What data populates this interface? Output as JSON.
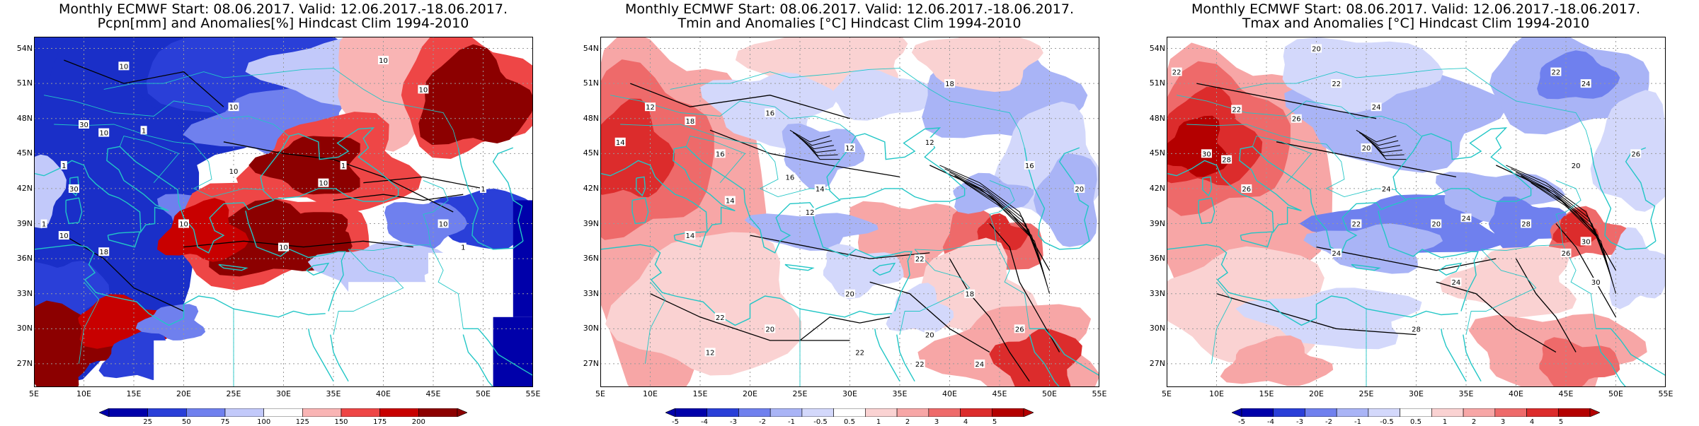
{
  "panels": [
    {
      "title_line1": "Monthly ECMWF Start: 08.06.2017. Valid: 12.06.2017.-18.06.2017.",
      "title_line2": "Pcpn[mm] and Anomalies[%] Hindcast Clim 1994-2010",
      "colorbar_labels": [
        "25",
        "50",
        "75",
        "100",
        "125",
        "150",
        "175",
        "200"
      ],
      "contour_labels": [
        "10",
        "10",
        "10",
        "10",
        "1",
        "1",
        "10",
        "30",
        "1",
        "30",
        "10",
        "10",
        "10",
        "18",
        "10",
        "1",
        "10",
        "1",
        "10",
        "1"
      ],
      "anomaly_palette": [
        "#0000aa",
        "#2a3fd8",
        "#6f80ee",
        "#c2c9fa",
        "#ffffff",
        "#f9b4b4",
        "#ee4646",
        "#c80000",
        "#8c0000"
      ]
    },
    {
      "title_line1": "Monthly ECMWF Start: 08.06.2017. Valid: 12.06.2017.-18.06.2017.",
      "title_line2": "Tmin and Anomalies [°C] Hindcast Clim 1994-2010",
      "colorbar_labels": [
        "-5",
        "-4",
        "-3",
        "-2",
        "-1",
        "-0.5",
        "0.5",
        "1",
        "2",
        "3",
        "4",
        "5"
      ],
      "contour_labels": [
        "12",
        "14",
        "16",
        "18",
        "12",
        "16",
        "14",
        "16",
        "14",
        "12",
        "12",
        "22",
        "22",
        "18",
        "20",
        "22",
        "20",
        "24",
        "26",
        "20",
        "18",
        "22",
        "12",
        "16",
        "14",
        "20"
      ],
      "anomaly_palette": [
        "#0000aa",
        "#2a3fd8",
        "#6f80ee",
        "#a9b4f6",
        "#d3d8fb",
        "#ffffff",
        "#fad2d2",
        "#f7a6a6",
        "#ee6a6a",
        "#dc2c2c",
        "#b40000"
      ]
    },
    {
      "title_line1": "Monthly ECMWF Start: 08.06.2017. Valid: 12.06.2017.-18.06.2017.",
      "title_line2": "Tmax and Anomalies [°C] Hindcast Clim 1994-2010",
      "colorbar_labels": [
        "-5",
        "-4",
        "-3",
        "-2",
        "-1",
        "-0.5",
        "0.5",
        "1",
        "2",
        "3",
        "4",
        "5"
      ],
      "contour_labels": [
        "22",
        "20",
        "22",
        "24",
        "26",
        "22",
        "30",
        "28",
        "26",
        "20",
        "24",
        "22",
        "20",
        "24",
        "28",
        "26",
        "30",
        "24",
        "24",
        "30",
        "28",
        "20",
        "22",
        "24",
        "26"
      ],
      "anomaly_palette": [
        "#0000aa",
        "#2a3fd8",
        "#6f80ee",
        "#a9b4f6",
        "#d3d8fb",
        "#ffffff",
        "#fad2d2",
        "#f7a6a6",
        "#ee6a6a",
        "#dc2c2c",
        "#b40000"
      ]
    }
  ],
  "axes": {
    "lat_labels": [
      "54N",
      "51N",
      "48N",
      "45N",
      "42N",
      "39N",
      "36N",
      "33N",
      "30N",
      "27N"
    ],
    "lon_labels": [
      "5E",
      "10E",
      "15E",
      "20E",
      "25E",
      "30E",
      "35E",
      "40E",
      "45E",
      "50E",
      "55E"
    ],
    "lon_range": [
      5,
      55
    ],
    "lat_range": [
      25,
      55
    ]
  },
  "colors": {
    "coastline": "#22c6c6",
    "contour": "#000000",
    "grid": "#9a9a9a"
  }
}
